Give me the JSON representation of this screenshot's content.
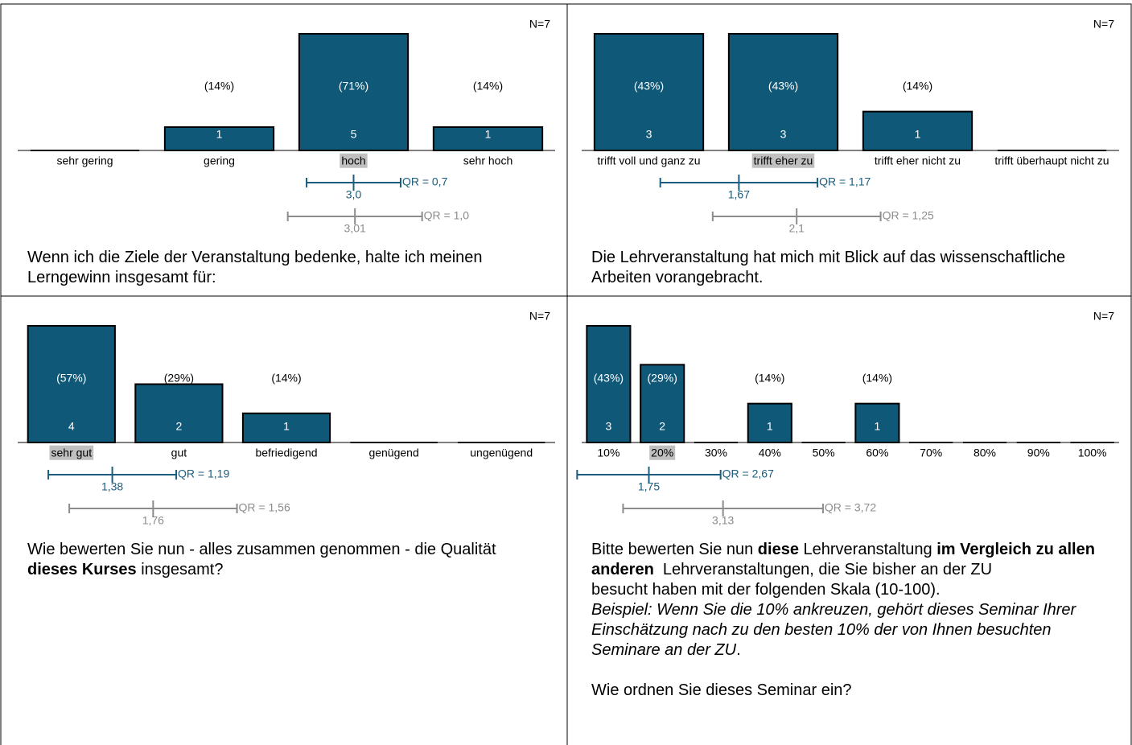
{
  "chart_data": [
    {
      "type": "bar",
      "n_label": "N=7",
      "color": "#0f5878",
      "categories": [
        "sehr gering",
        "gering",
        "hoch",
        "sehr hoch"
      ],
      "values": [
        0,
        1,
        5,
        1
      ],
      "percent_labels": [
        null,
        "(14%)",
        "(71%)",
        "(14%)"
      ],
      "highlight": 2,
      "stats": [
        {
          "mean": {
            "value": 3.0,
            "label": "3,0"
          },
          "qr": {
            "value": 0.7,
            "label": "QR = 0,7"
          },
          "color": "#1b5d7e"
        },
        {
          "mean": {
            "value": 3.01,
            "label": "3,01"
          },
          "qr": {
            "value": 1.0,
            "label": "QR = 1,0"
          },
          "color": "#8c8c8c"
        }
      ],
      "question": [
        [
          {
            "text": "Wenn ich die Ziele der Veranstaltung bedenke, halte ich meinen Lerngewinn insgesamt für:"
          }
        ]
      ]
    },
    {
      "type": "bar",
      "n_label": "N=7",
      "color": "#0f5878",
      "categories": [
        "trifft voll und ganz zu",
        "trifft eher zu",
        "trifft eher nicht zu",
        "trifft überhaupt nicht zu"
      ],
      "values": [
        3,
        3,
        1,
        0
      ],
      "percent_labels": [
        "(43%)",
        "(43%)",
        "(14%)",
        null
      ],
      "highlight": 1,
      "stats": [
        {
          "mean": {
            "value": 1.67,
            "label": "1,67"
          },
          "qr": {
            "value": 1.17,
            "label": "QR = 1,17"
          },
          "color": "#1b5d7e"
        },
        {
          "mean": {
            "value": 2.1,
            "label": "2,1"
          },
          "qr": {
            "value": 1.25,
            "label": "QR = 1,25"
          },
          "color": "#8c8c8c"
        }
      ],
      "question": [
        [
          {
            "text": "Die Lehrveranstaltung hat mich mit Blick auf das wissenschaftliche Arbeiten vorangebracht."
          }
        ]
      ]
    },
    {
      "type": "bar",
      "n_label": "N=7",
      "color": "#0f5878",
      "categories": [
        "sehr gut",
        "gut",
        "befriedigend",
        "genügend",
        "ungenügend"
      ],
      "values": [
        4,
        2,
        1,
        0,
        0
      ],
      "percent_labels": [
        "(57%)",
        "(29%)",
        "(14%)",
        null,
        null
      ],
      "highlight": 0,
      "stats": [
        {
          "mean": {
            "value": 1.38,
            "label": "1,38"
          },
          "qr": {
            "value": 1.19,
            "label": "QR = 1,19"
          },
          "color": "#1b5d7e"
        },
        {
          "mean": {
            "value": 1.76,
            "label": "1,76"
          },
          "qr": {
            "value": 1.56,
            "label": "QR = 1,56"
          },
          "color": "#8c8c8c"
        }
      ],
      "question": [
        [
          {
            "text": "Wie bewerten Sie nun - alles zusammen genommen - die Qualität "
          },
          {
            "text": "dieses Kurses",
            "style": "bold"
          },
          {
            "text": " insgesamt?"
          }
        ]
      ]
    },
    {
      "type": "bar",
      "n_label": "N=7",
      "color": "#0f5878",
      "categories": [
        "10%",
        "20%",
        "30%",
        "40%",
        "50%",
        "60%",
        "70%",
        "80%",
        "90%",
        "100%"
      ],
      "values": [
        3,
        2,
        0,
        1,
        0,
        1,
        0,
        0,
        0,
        0
      ],
      "percent_labels": [
        "(43%)",
        "(29%)",
        null,
        "(14%)",
        null,
        "(14%)",
        null,
        null,
        null,
        null
      ],
      "highlight": 1,
      "stats": [
        {
          "mean": {
            "value": 1.75,
            "label": "1,75"
          },
          "qr": {
            "value": 2.67,
            "label": "QR = 2,67"
          },
          "color": "#1b5d7e"
        },
        {
          "mean": {
            "value": 3.13,
            "label": "3,13"
          },
          "qr": {
            "value": 3.72,
            "label": "QR = 3,72"
          },
          "color": "#8c8c8c"
        }
      ],
      "question": [
        [
          {
            "text": "Bitte bewerten Sie nun "
          },
          {
            "text": "diese",
            "style": "bold"
          },
          {
            "text": " Lehrveranstaltung "
          },
          {
            "text": "im Vergleich zu allen anderen",
            "style": "bold"
          },
          {
            "text": "  Lehrveranstaltungen, die Sie bisher an der ZU"
          }
        ],
        [
          {
            "text": "besucht haben mit der folgenden Skala (10-100)."
          }
        ],
        [
          {
            "text": "Beispiel: Wenn Sie die 10% ankreuzen, gehört dieses Seminar Ihrer Einschätzung nach zu den besten 10% der von Ihnen besuchten Seminare an der ZU",
            "style": "italic"
          },
          {
            "text": "."
          }
        ],
        [],
        [
          {
            "text": "Wie ordnen Sie dieses Seminar ein?"
          }
        ]
      ]
    }
  ]
}
